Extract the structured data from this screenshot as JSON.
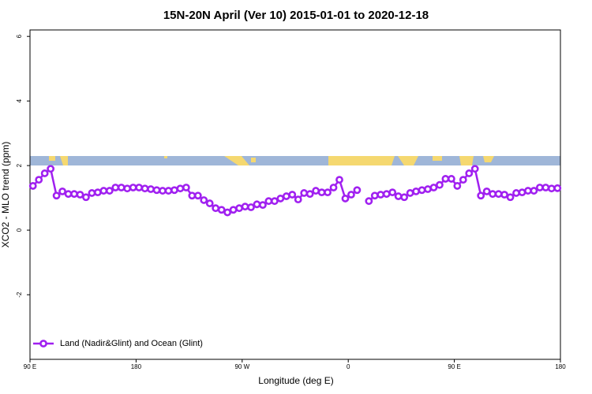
{
  "chart_data": {
    "type": "line",
    "title": "15N-20N April (Ver 10)   2015-01-01 to 2020-12-18",
    "xlabel": "Longitude (deg E)",
    "ylabel": "XCO2 - MLO trend (ppm)",
    "xlim": [
      90,
      540
    ],
    "xticks": [
      {
        "value": 90,
        "label": "90 E"
      },
      {
        "value": 180,
        "label": "180"
      },
      {
        "value": 270,
        "label": "90 W"
      },
      {
        "value": 360,
        "label": "0"
      },
      {
        "value": 450,
        "label": "90 E"
      },
      {
        "value": 540,
        "label": "180"
      }
    ],
    "ylim": [
      -4,
      6.2
    ],
    "yticks": [
      -2,
      0,
      2,
      4,
      6
    ],
    "legend": "bottom-left",
    "x": [
      92.5,
      97.5,
      102.5,
      107.5,
      112.5,
      117.5,
      122.5,
      127.5,
      132.5,
      137.5,
      142.5,
      147.5,
      152.5,
      157.5,
      162.5,
      167.5,
      172.5,
      177.5,
      182.5,
      187.5,
      192.5,
      197.5,
      202.5,
      207.5,
      212.5,
      217.5,
      222.5,
      227.5,
      232.5,
      237.5,
      242.5,
      247.5,
      252.5,
      257.5,
      262.5,
      267.5,
      272.5,
      277.5,
      282.5,
      287.5,
      292.5,
      297.5,
      302.5,
      307.5,
      312.5,
      317.5,
      322.5,
      327.5,
      332.5,
      337.5,
      342.5,
      347.5,
      352.5,
      357.5,
      362.5,
      367.5,
      372.5,
      377.5,
      382.5,
      387.5,
      392.5,
      397.5,
      402.5,
      407.5,
      412.5,
      417.5,
      422.5,
      427.5,
      432.5,
      437.5,
      442.5,
      447.5,
      452.5,
      457.5,
      462.5,
      467.5,
      472.5,
      477.5,
      482.5,
      487.5,
      492.5,
      497.5,
      502.5,
      507.5,
      512.5,
      517.5,
      522.5,
      527.5,
      532.5,
      537.5
    ],
    "series": [
      {
        "name": "Land (Nadir&Glint) and Ocean (Glint)",
        "color": "#a020f0",
        "values": [
          1.37,
          1.56,
          1.76,
          1.9,
          1.07,
          1.2,
          1.12,
          1.12,
          1.1,
          1.02,
          1.15,
          1.17,
          1.22,
          1.22,
          1.32,
          1.32,
          1.29,
          1.32,
          1.32,
          1.29,
          1.27,
          1.24,
          1.22,
          1.22,
          1.24,
          1.29,
          1.32,
          1.07,
          1.07,
          0.93,
          0.83,
          0.68,
          0.63,
          0.55,
          0.63,
          0.68,
          0.73,
          0.71,
          0.8,
          0.78,
          0.9,
          0.9,
          0.98,
          1.05,
          1.1,
          0.95,
          1.15,
          1.12,
          1.22,
          1.17,
          1.17,
          1.32,
          1.56,
          0.98,
          1.1,
          1.24,
          null,
          0.9,
          1.07,
          1.1,
          1.12,
          1.17,
          1.05,
          1.02,
          1.15,
          1.2,
          1.24,
          1.27,
          1.32,
          1.4,
          1.59,
          1.59,
          1.37,
          1.56,
          1.76,
          1.9,
          1.07,
          1.2,
          1.12,
          1.12,
          1.1,
          1.02,
          1.15,
          1.17,
          1.22,
          1.22,
          1.32,
          1.32,
          1.29,
          1.3
        ]
      }
    ]
  }
}
